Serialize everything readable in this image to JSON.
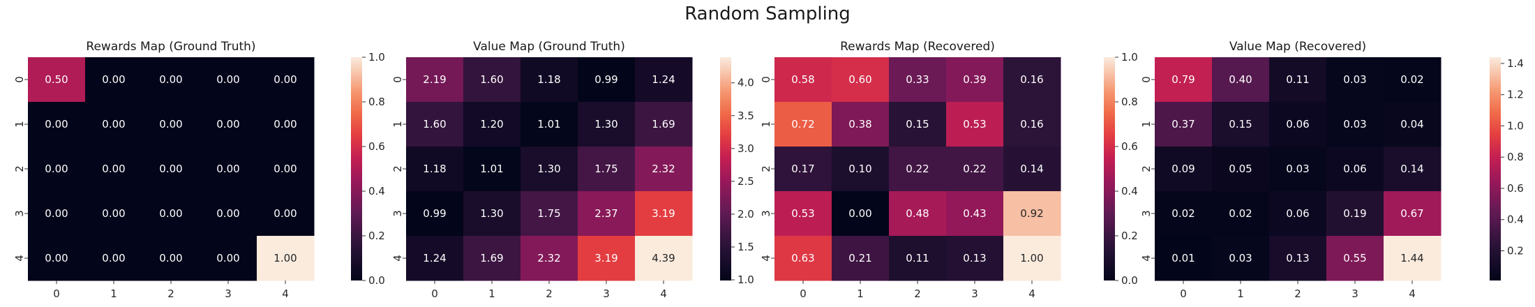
{
  "figure": {
    "suptitle": "Random Sampling"
  },
  "chart_data": [
    {
      "type": "heatmap",
      "title": "Rewards Map (Ground Truth)",
      "x_tick_labels": [
        "0",
        "1",
        "2",
        "3",
        "4"
      ],
      "y_tick_labels": [
        "0",
        "1",
        "2",
        "3",
        "4"
      ],
      "values": [
        [
          0.5,
          0.0,
          0.0,
          0.0,
          0.0
        ],
        [
          0.0,
          0.0,
          0.0,
          0.0,
          0.0
        ],
        [
          0.0,
          0.0,
          0.0,
          0.0,
          0.0
        ],
        [
          0.0,
          0.0,
          0.0,
          0.0,
          0.0
        ],
        [
          0.0,
          0.0,
          0.0,
          0.0,
          1.0
        ]
      ],
      "colorbar": {
        "min": 0.0,
        "max": 1.0,
        "ticks": [
          0.0,
          0.2,
          0.4,
          0.6,
          0.8,
          1.0
        ],
        "tick_labels": [
          "0.0",
          "0.2",
          "0.4",
          "0.6",
          "0.8",
          "1.0"
        ]
      },
      "colormap": "rocket",
      "annotation_format": "2 decimals"
    },
    {
      "type": "heatmap",
      "title": "Value Map (Ground Truth)",
      "x_tick_labels": [
        "0",
        "1",
        "2",
        "3",
        "4"
      ],
      "y_tick_labels": [
        "0",
        "1",
        "2",
        "3",
        "4"
      ],
      "values": [
        [
          2.19,
          1.6,
          1.18,
          0.99,
          1.24
        ],
        [
          1.6,
          1.2,
          1.01,
          1.3,
          1.69
        ],
        [
          1.18,
          1.01,
          1.3,
          1.75,
          2.32
        ],
        [
          0.99,
          1.3,
          1.75,
          2.37,
          3.19
        ],
        [
          1.24,
          1.69,
          2.32,
          3.19,
          4.39
        ]
      ],
      "colorbar": {
        "min": 0.99,
        "max": 4.39,
        "ticks": [
          1.0,
          1.5,
          2.0,
          2.5,
          3.0,
          3.5,
          4.0
        ],
        "tick_labels": [
          "1.0",
          "1.5",
          "2.0",
          "2.5",
          "3.0",
          "3.5",
          "4.0"
        ]
      },
      "colormap": "rocket",
      "annotation_format": "2 decimals"
    },
    {
      "type": "heatmap",
      "title": "Rewards Map (Recovered)",
      "x_tick_labels": [
        "0",
        "1",
        "2",
        "3",
        "4"
      ],
      "y_tick_labels": [
        "0",
        "1",
        "2",
        "3",
        "4"
      ],
      "values": [
        [
          0.58,
          0.6,
          0.33,
          0.39,
          0.16
        ],
        [
          0.72,
          0.38,
          0.15,
          0.53,
          0.16
        ],
        [
          0.17,
          0.1,
          0.22,
          0.22,
          0.14
        ],
        [
          0.53,
          0.0,
          0.48,
          0.43,
          0.92
        ],
        [
          0.63,
          0.21,
          0.11,
          0.13,
          1.0
        ]
      ],
      "colorbar": {
        "min": 0.0,
        "max": 1.0,
        "ticks": [
          0.0,
          0.2,
          0.4,
          0.6,
          0.8,
          1.0
        ],
        "tick_labels": [
          "0.0",
          "0.2",
          "0.4",
          "0.6",
          "0.8",
          "1.0"
        ]
      },
      "colormap": "rocket",
      "annotation_format": "2 decimals"
    },
    {
      "type": "heatmap",
      "title": "Value Map (Recovered)",
      "x_tick_labels": [
        "0",
        "1",
        "2",
        "3",
        "4"
      ],
      "y_tick_labels": [
        "0",
        "1",
        "2",
        "3",
        "4"
      ],
      "values": [
        [
          0.79,
          0.4,
          0.11,
          0.03,
          0.02
        ],
        [
          0.37,
          0.15,
          0.06,
          0.03,
          0.04
        ],
        [
          0.09,
          0.05,
          0.03,
          0.06,
          0.14
        ],
        [
          0.02,
          0.02,
          0.06,
          0.19,
          0.67
        ],
        [
          0.01,
          0.03,
          0.13,
          0.55,
          1.44
        ]
      ],
      "colorbar": {
        "min": 0.01,
        "max": 1.44,
        "ticks": [
          0.2,
          0.4,
          0.6,
          0.8,
          1.0,
          1.2,
          1.4
        ],
        "tick_labels": [
          "0.2",
          "0.4",
          "0.6",
          "0.8",
          "1.0",
          "1.2",
          "1.4"
        ]
      },
      "colormap": "rocket",
      "annotation_format": "2 decimals"
    }
  ]
}
